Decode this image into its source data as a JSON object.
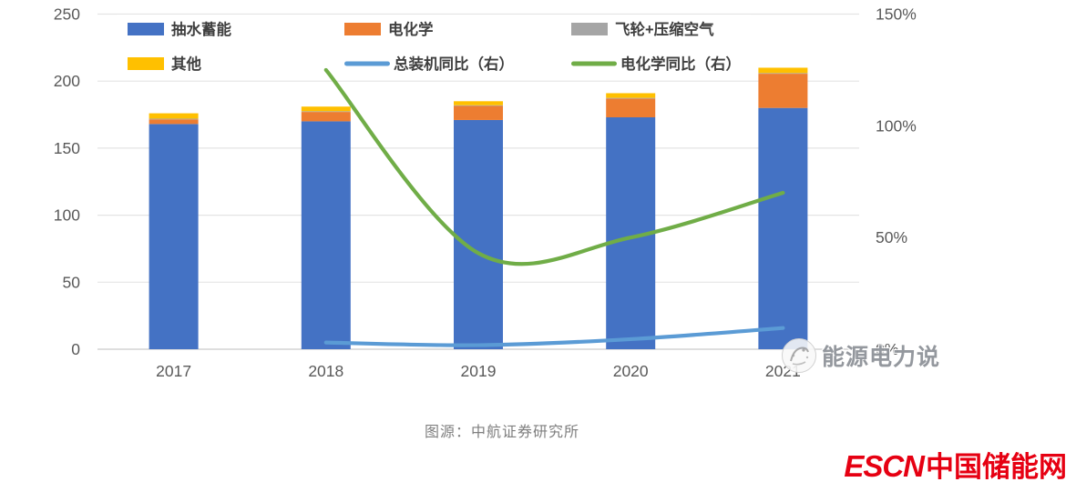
{
  "chart_data": {
    "type": "bar",
    "subtype": "stacked-bars-with-lines",
    "title": "",
    "categories": [
      "2017",
      "2018",
      "2019",
      "2020",
      "2021"
    ],
    "bar_series": [
      {
        "name": "抽水蓄能",
        "color": "#4472C4",
        "values": [
          168,
          170,
          171,
          173,
          180
        ]
      },
      {
        "name": "电化学",
        "color": "#ED7D31",
        "values": [
          3.5,
          7,
          10.5,
          14,
          25.5
        ]
      },
      {
        "name": "飞轮+压缩空气",
        "color": "#A5A5A5",
        "values": [
          0.5,
          0.5,
          0.5,
          0.5,
          0.5
        ]
      },
      {
        "name": "其他",
        "color": "#FFC000",
        "values": [
          4,
          3.5,
          3,
          3.5,
          4
        ]
      }
    ],
    "line_series": [
      {
        "name": "总装机同比（右）",
        "color": "#5B9BD5",
        "axis": "right",
        "values": [
          null,
          3,
          1.8,
          4.5,
          9.5
        ]
      },
      {
        "name": "电化学同比（右）",
        "color": "#70AD47",
        "axis": "right",
        "values": [
          null,
          125,
          43,
          50,
          70
        ]
      }
    ],
    "left_axis": {
      "min": 0,
      "max": 250,
      "ticks": [
        0,
        50,
        100,
        150,
        200,
        250
      ]
    },
    "right_axis": {
      "min": 0,
      "max": 150,
      "ticks": [
        0,
        50,
        100,
        150
      ],
      "tick_labels": [
        "0%",
        "50%",
        "100%",
        "150%"
      ]
    },
    "grid": true,
    "legend_position": "top",
    "legend": [
      {
        "label": "抽水蓄能",
        "color": "#4472C4",
        "swatch": "box"
      },
      {
        "label": "电化学",
        "color": "#ED7D31",
        "swatch": "box"
      },
      {
        "label": "飞轮+压缩空气",
        "color": "#A5A5A5",
        "swatch": "box"
      },
      {
        "label": "其他",
        "color": "#FFC000",
        "swatch": "box"
      },
      {
        "label": "总装机同比（右）",
        "color": "#5B9BD5",
        "swatch": "line"
      },
      {
        "label": "电化学同比（右）",
        "color": "#70AD47",
        "swatch": "line"
      }
    ]
  },
  "watermark": {
    "text": "能源电力说"
  },
  "caption": "图源：中航证券研究所",
  "logo": {
    "en": "ESCN",
    "cn": "中国储能网",
    "color": "#E60012"
  }
}
